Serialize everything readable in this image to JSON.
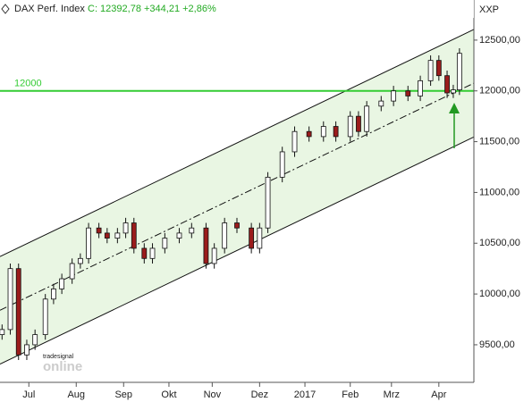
{
  "chart_data": {
    "type": "candlestick",
    "title": "DAX Perf. Index",
    "quote": "C: 12392,78 +344,21 +2,86%",
    "quote_color": "#22aa22",
    "y_axis_label": "XXP",
    "watermark": [
      "tradesignal",
      "online"
    ],
    "xlim": [
      0,
      230
    ],
    "xticks": [
      {
        "value": 14,
        "label": "Jul"
      },
      {
        "value": 37,
        "label": "Aug"
      },
      {
        "value": 60,
        "label": "Sep"
      },
      {
        "value": 82,
        "label": "Okt"
      },
      {
        "value": 103,
        "label": "Nov"
      },
      {
        "value": 126,
        "label": "Dez"
      },
      {
        "value": 148,
        "label": "2017"
      },
      {
        "value": 170,
        "label": "Feb"
      },
      {
        "value": 190,
        "label": "Mrz"
      },
      {
        "value": 213,
        "label": "Apr"
      }
    ],
    "ylim": [
      9130,
      12895
    ],
    "yticks": [
      {
        "value": 9500,
        "label": "9500,00"
      },
      {
        "value": 10000,
        "label": "10000,00"
      },
      {
        "value": 10500,
        "label": "10500,00"
      },
      {
        "value": 11000,
        "label": "11000,00"
      },
      {
        "value": 11500,
        "label": "11500,00"
      },
      {
        "value": 12000,
        "label": "12000,00"
      },
      {
        "value": 12500,
        "label": "12500,00"
      }
    ],
    "up_color": "#ffffff",
    "down_color": "#9b1c1c",
    "x": [
      1,
      5,
      9,
      13,
      17,
      22,
      26,
      30,
      35,
      39,
      43,
      48,
      52,
      57,
      61,
      65,
      70,
      74,
      80,
      87,
      93,
      100,
      104,
      109,
      115,
      122,
      126,
      130,
      137,
      143,
      150,
      157,
      163,
      170,
      174,
      178,
      185,
      191,
      198,
      204,
      209,
      213,
      217,
      220,
      223
    ],
    "open": [
      9600,
      9650,
      10250,
      9400,
      9500,
      9600,
      9950,
      10050,
      10150,
      10300,
      10350,
      10650,
      10600,
      10550,
      10600,
      10700,
      10450,
      10350,
      10450,
      10550,
      10600,
      10650,
      10300,
      10450,
      10700,
      10650,
      10450,
      10650,
      11150,
      11400,
      11600,
      11550,
      11650,
      11550,
      11750,
      11600,
      11850,
      11900,
      12000,
      11950,
      12100,
      12300,
      12150,
      11980,
      12010
    ],
    "high": [
      9700,
      10300,
      10300,
      9550,
      9650,
      10000,
      10100,
      10200,
      10350,
      10400,
      10700,
      10700,
      10650,
      10650,
      10750,
      10750,
      10500,
      10500,
      10600,
      10650,
      10700,
      10700,
      10500,
      10750,
      10750,
      10700,
      10700,
      11200,
      11450,
      11650,
      11650,
      11700,
      11700,
      11800,
      11800,
      11900,
      11950,
      12050,
      12050,
      12150,
      12350,
      12350,
      12200,
      12060,
      12420
    ],
    "low": [
      9550,
      9600,
      9350,
      9350,
      9450,
      9550,
      9900,
      10000,
      10100,
      10250,
      10300,
      10550,
      10500,
      10500,
      10550,
      10400,
      10300,
      10300,
      10400,
      10500,
      10550,
      10250,
      10250,
      10400,
      10600,
      10400,
      10400,
      10600,
      11100,
      11350,
      11500,
      11500,
      11500,
      11500,
      11550,
      11550,
      11800,
      11850,
      11900,
      11900,
      12050,
      12100,
      11930,
      11930,
      11960
    ],
    "close": [
      9650,
      10250,
      9400,
      9500,
      9600,
      9950,
      10050,
      10150,
      10300,
      10350,
      10650,
      10600,
      10550,
      10600,
      10700,
      10450,
      10350,
      10450,
      10550,
      10600,
      10650,
      10300,
      10450,
      10700,
      10650,
      10450,
      10650,
      11150,
      11400,
      11600,
      11550,
      11650,
      11550,
      11750,
      11600,
      11850,
      11900,
      12000,
      11950,
      12100,
      12300,
      12150,
      11980,
      12010,
      12370
    ],
    "hline": {
      "value": 12000,
      "label": "12000",
      "color": "#33cc33"
    },
    "channel": {
      "x": [
        0,
        230
      ],
      "upper": [
        10369,
        12605
      ],
      "middle": [
        9840,
        12076
      ],
      "lower": [
        9310,
        11546
      ],
      "fill": "#e9f6e3"
    }
  }
}
